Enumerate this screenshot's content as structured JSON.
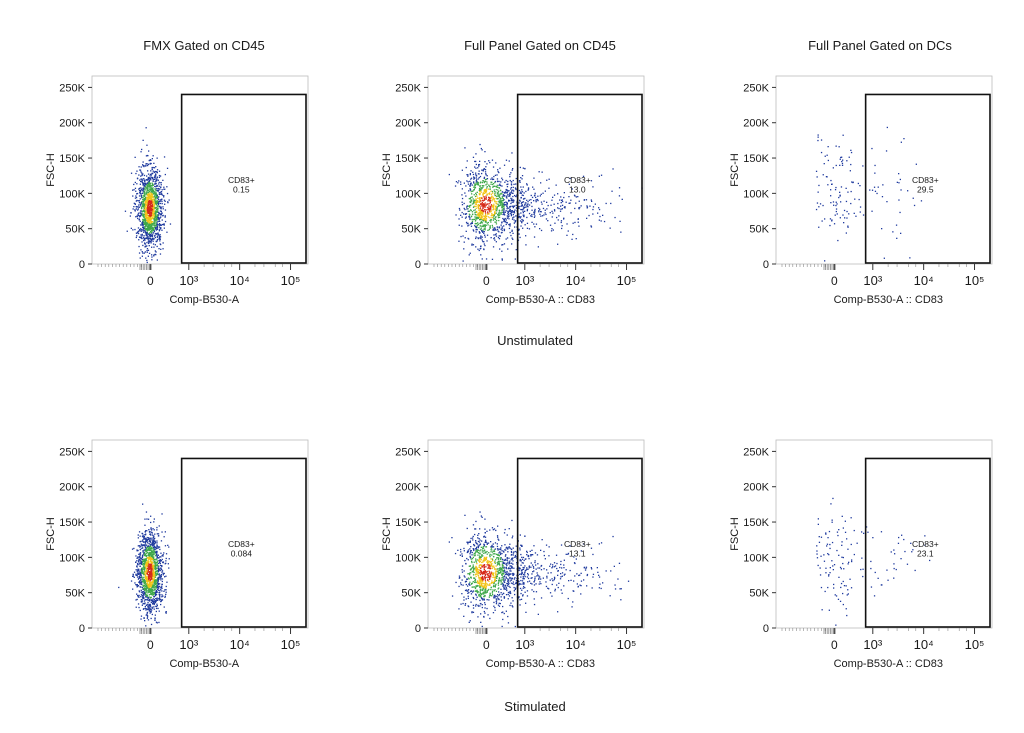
{
  "column_titles": [
    "FMX Gated on CD45",
    "Full Panel Gated on CD45",
    "Full Panel Gated on DCs"
  ],
  "row_labels": [
    "Unstimulated",
    "Stimulated"
  ],
  "colors": {
    "density_high": "#d62a1a",
    "density_mid": "#f2c418",
    "density_low_mid": "#3fa84a",
    "density_low": "#1f3a9e",
    "axis": "#333333"
  },
  "chart_data": [
    {
      "type": "scatter",
      "row": "Unstimulated",
      "column": "FMX Gated on CD45",
      "xlabel": "Comp-B530-A",
      "ylabel": "FSC-H",
      "x_scale": "biexponential",
      "x_ticks": [
        "0",
        "10³",
        "10⁴",
        "10⁵"
      ],
      "ylim": [
        0,
        262144
      ],
      "y_ticks": [
        "0",
        "50K",
        "100K",
        "150K",
        "200K",
        "250K"
      ],
      "gate": {
        "name": "CD83+",
        "value": "0.15",
        "x_range": [
          250,
          150000
        ],
        "y_range": [
          0,
          240000
        ]
      },
      "population": {
        "center_x": 0,
        "center_y": 80000,
        "x_spread": "narrow",
        "events": "dense"
      }
    },
    {
      "type": "scatter",
      "row": "Unstimulated",
      "column": "Full Panel Gated on CD45",
      "xlabel": "Comp-B530-A :: CD83",
      "ylabel": "FSC-H",
      "x_scale": "biexponential",
      "x_ticks": [
        "0",
        "10³",
        "10⁴",
        "10⁵"
      ],
      "ylim": [
        0,
        262144
      ],
      "y_ticks": [
        "0",
        "50K",
        "100K",
        "150K",
        "200K",
        "250K"
      ],
      "gate": {
        "name": "CD83+",
        "value": "13.0",
        "x_range": [
          300,
          150000
        ],
        "y_range": [
          0,
          240000
        ]
      },
      "population": {
        "center_x": 0,
        "center_y": 85000,
        "x_spread": "wide",
        "events": "dense"
      }
    },
    {
      "type": "scatter",
      "row": "Unstimulated",
      "column": "Full Panel Gated on DCs",
      "xlabel": "Comp-B530-A :: CD83",
      "ylabel": "FSC-H",
      "x_scale": "biexponential",
      "x_ticks": [
        "0",
        "10³",
        "10⁴",
        "10⁵"
      ],
      "ylim": [
        0,
        262144
      ],
      "y_ticks": [
        "0",
        "50K",
        "100K",
        "150K",
        "200K",
        "250K"
      ],
      "gate": {
        "name": "CD83+",
        "value": "29.5",
        "x_range": [
          300,
          150000
        ],
        "y_range": [
          0,
          240000
        ]
      },
      "population": {
        "center_x": 0,
        "center_y": 100000,
        "x_spread": "wide",
        "events": "sparse"
      }
    },
    {
      "type": "scatter",
      "row": "Stimulated",
      "column": "FMX Gated on CD45",
      "xlabel": "Comp-B530-A",
      "ylabel": "FSC-H",
      "x_scale": "biexponential",
      "x_ticks": [
        "0",
        "10³",
        "10⁴",
        "10⁵"
      ],
      "ylim": [
        0,
        262144
      ],
      "y_ticks": [
        "0",
        "50K",
        "100K",
        "150K",
        "200K",
        "250K"
      ],
      "gate": {
        "name": "CD83+",
        "value": "0.084",
        "x_range": [
          250,
          150000
        ],
        "y_range": [
          0,
          240000
        ]
      },
      "population": {
        "center_x": 0,
        "center_y": 80000,
        "x_spread": "narrow",
        "events": "dense"
      }
    },
    {
      "type": "scatter",
      "row": "Stimulated",
      "column": "Full Panel Gated on CD45",
      "xlabel": "Comp-B530-A :: CD83",
      "ylabel": "FSC-H",
      "x_scale": "biexponential",
      "x_ticks": [
        "0",
        "10³",
        "10⁴",
        "10⁵"
      ],
      "ylim": [
        0,
        262144
      ],
      "y_ticks": [
        "0",
        "50K",
        "100K",
        "150K",
        "200K",
        "250K"
      ],
      "gate": {
        "name": "CD83+",
        "value": "13.1",
        "x_range": [
          300,
          150000
        ],
        "y_range": [
          0,
          240000
        ]
      },
      "population": {
        "center_x": 0,
        "center_y": 80000,
        "x_spread": "wide",
        "events": "dense"
      }
    },
    {
      "type": "scatter",
      "row": "Stimulated",
      "column": "Full Panel Gated on DCs",
      "xlabel": "Comp-B530-A :: CD83",
      "ylabel": "FSC-H",
      "x_scale": "biexponential",
      "x_ticks": [
        "0",
        "10³",
        "10⁴",
        "10⁵"
      ],
      "ylim": [
        0,
        262144
      ],
      "y_ticks": [
        "0",
        "50K",
        "100K",
        "150K",
        "200K",
        "250K"
      ],
      "gate": {
        "name": "CD83+",
        "value": "23.1",
        "x_range": [
          300,
          150000
        ],
        "y_range": [
          0,
          240000
        ]
      },
      "population": {
        "center_x": 0,
        "center_y": 95000,
        "x_spread": "wide",
        "events": "sparse"
      }
    }
  ]
}
